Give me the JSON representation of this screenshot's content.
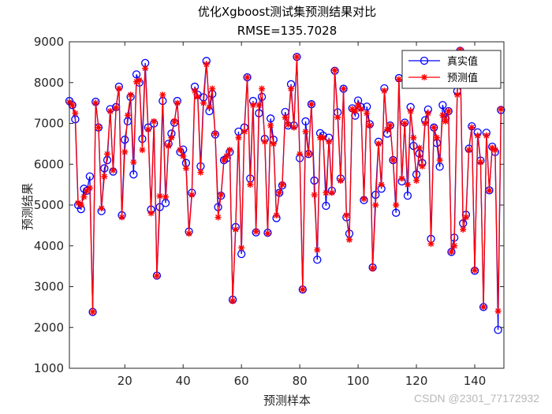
{
  "chart_data": {
    "type": "line",
    "title": "优化Xgboost测试集预测结果对比",
    "subtitle": "RMSE=135.7028",
    "xlabel": "预测样本",
    "ylabel": "预测结果",
    "xlim": [
      1,
      150
    ],
    "ylim": [
      1000,
      9000
    ],
    "xticks": [
      20,
      40,
      60,
      80,
      100,
      120,
      140
    ],
    "yticks": [
      1000,
      2000,
      3000,
      4000,
      5000,
      6000,
      7000,
      8000,
      9000
    ],
    "legend_position": "top-right",
    "grid": false,
    "series": [
      {
        "name": "真实值",
        "color": "#0000ff",
        "marker": "circle",
        "values": [
          7550,
          7450,
          7100,
          5000,
          4900,
          5400,
          5350,
          5700,
          2380,
          7530,
          6900,
          4850,
          5900,
          6100,
          7350,
          5820,
          7400,
          7900,
          4750,
          6600,
          7050,
          7650,
          5750,
          8200,
          8000,
          6620,
          8480,
          6900,
          4890,
          7000,
          3270,
          4950,
          7550,
          5050,
          6500,
          6750,
          7020,
          7550,
          6300,
          6360,
          6030,
          4350,
          5300,
          7900,
          7700,
          5950,
          7640,
          8530,
          7300,
          7720,
          6730,
          4950,
          5230,
          6100,
          6150,
          6300,
          2680,
          4460,
          6800,
          3800,
          6900,
          8130,
          5650,
          7550,
          4330,
          7250,
          7650,
          6620,
          4320,
          7120,
          6600,
          4680,
          5300,
          5480,
          7280,
          6950,
          7960,
          6950,
          8630,
          6150,
          2930,
          7050,
          6250,
          7470,
          5600,
          3660,
          6760,
          6700,
          4980,
          6650,
          5350,
          8290,
          7270,
          5650,
          7850,
          4700,
          4300,
          7370,
          7190,
          7560,
          7400,
          5120,
          7410,
          6980,
          3470,
          5250,
          6550,
          5400,
          7860,
          6750,
          6950,
          6100,
          4810,
          8110,
          5580,
          7020,
          5230,
          7400,
          6450,
          5750,
          6260,
          6030,
          7080,
          7340,
          4170,
          6900,
          6520,
          5940,
          7450,
          7120,
          7300,
          3850,
          4200,
          7790,
          8780,
          4550,
          4760,
          6380,
          6930,
          3390,
          6780,
          6090,
          2500,
          6770,
          5360,
          6430,
          6300,
          1940,
          7330
        ]
      },
      {
        "name": "预测值",
        "color": "#ff0000",
        "marker": "star",
        "values": [
          7520,
          7450,
          7250,
          5050,
          5000,
          5200,
          5350,
          5420,
          2380,
          7500,
          6900,
          4920,
          5700,
          6250,
          7300,
          5850,
          7380,
          7850,
          4700,
          6300,
          7200,
          7700,
          6050,
          8020,
          8060,
          6350,
          8350,
          6850,
          4800,
          7050,
          3260,
          5220,
          7700,
          5200,
          6450,
          6650,
          7050,
          7500,
          6350,
          6200,
          5900,
          4300,
          5250,
          7800,
          7650,
          5800,
          7500,
          8450,
          7400,
          7850,
          6750,
          4700,
          5250,
          6100,
          6200,
          6350,
          2650,
          4400,
          6650,
          3950,
          6800,
          8130,
          5500,
          7450,
          4350,
          7450,
          7850,
          6550,
          4300,
          6950,
          6500,
          4750,
          5300,
          5500,
          7150,
          6970,
          7850,
          6900,
          8630,
          6250,
          2930,
          6800,
          6250,
          7470,
          5250,
          3900,
          6650,
          6650,
          5300,
          6550,
          5300,
          8300,
          7150,
          5600,
          7850,
          4750,
          4150,
          7350,
          7300,
          7450,
          7350,
          5150,
          7250,
          6950,
          3450,
          5000,
          6500,
          5500,
          7800,
          6850,
          6950,
          6100,
          5000,
          8080,
          5650,
          7000,
          5500,
          7300,
          6650,
          5600,
          6400,
          5950,
          7000,
          7250,
          4050,
          6900,
          6650,
          6100,
          7200,
          7050,
          7300,
          3850,
          4000,
          7700,
          8800,
          4400,
          4700,
          6350,
          6900,
          3400,
          6700,
          6050,
          2500,
          6700,
          5350,
          6400,
          6350,
          2400,
          7350
        ]
      }
    ]
  },
  "watermark": "CSDN @2301_77172932"
}
